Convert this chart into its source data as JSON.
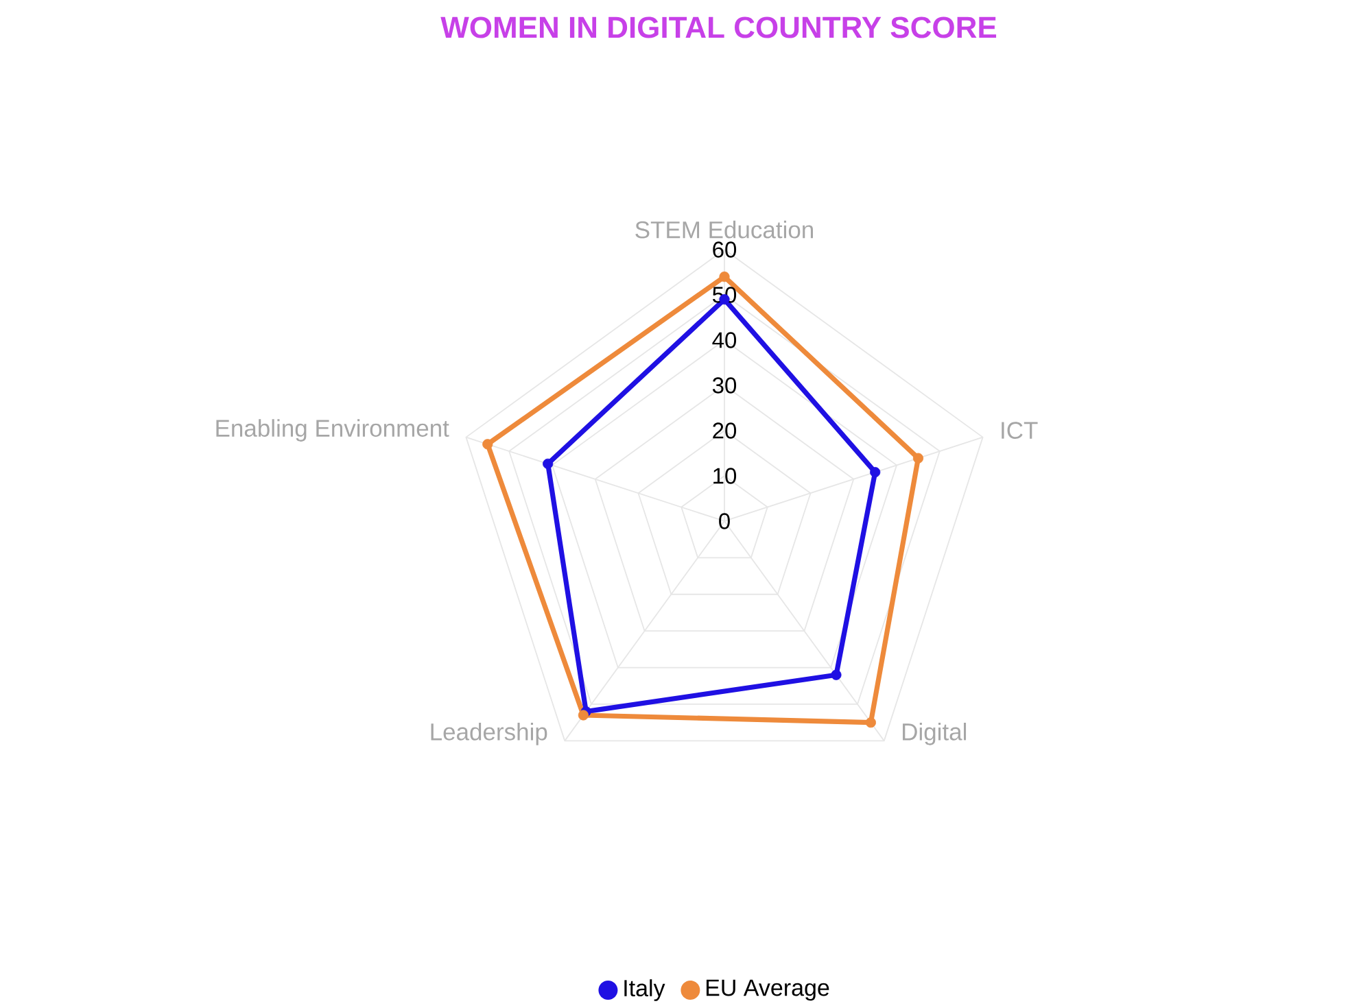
{
  "chart_data": {
    "type": "radar",
    "title": "WOMEN IN DIGITAL COUNTRY SCORE",
    "categories": [
      "STEM Education",
      "ICT",
      "Digital",
      "Leadership",
      "Enabling Environment"
    ],
    "series": [
      {
        "name": "Italy",
        "color": "#1f10e3",
        "values": [
          49,
          35,
          42,
          52,
          41
        ]
      },
      {
        "name": "EU Average",
        "color": "#ee8a3b",
        "values": [
          54,
          45,
          55,
          53,
          55
        ]
      }
    ],
    "ylim": [
      0,
      60
    ],
    "yticks": [
      0,
      10,
      20,
      30,
      40,
      50,
      60
    ],
    "grid": true,
    "legend": "bottom",
    "marker": "circle",
    "line_style": "solid"
  }
}
